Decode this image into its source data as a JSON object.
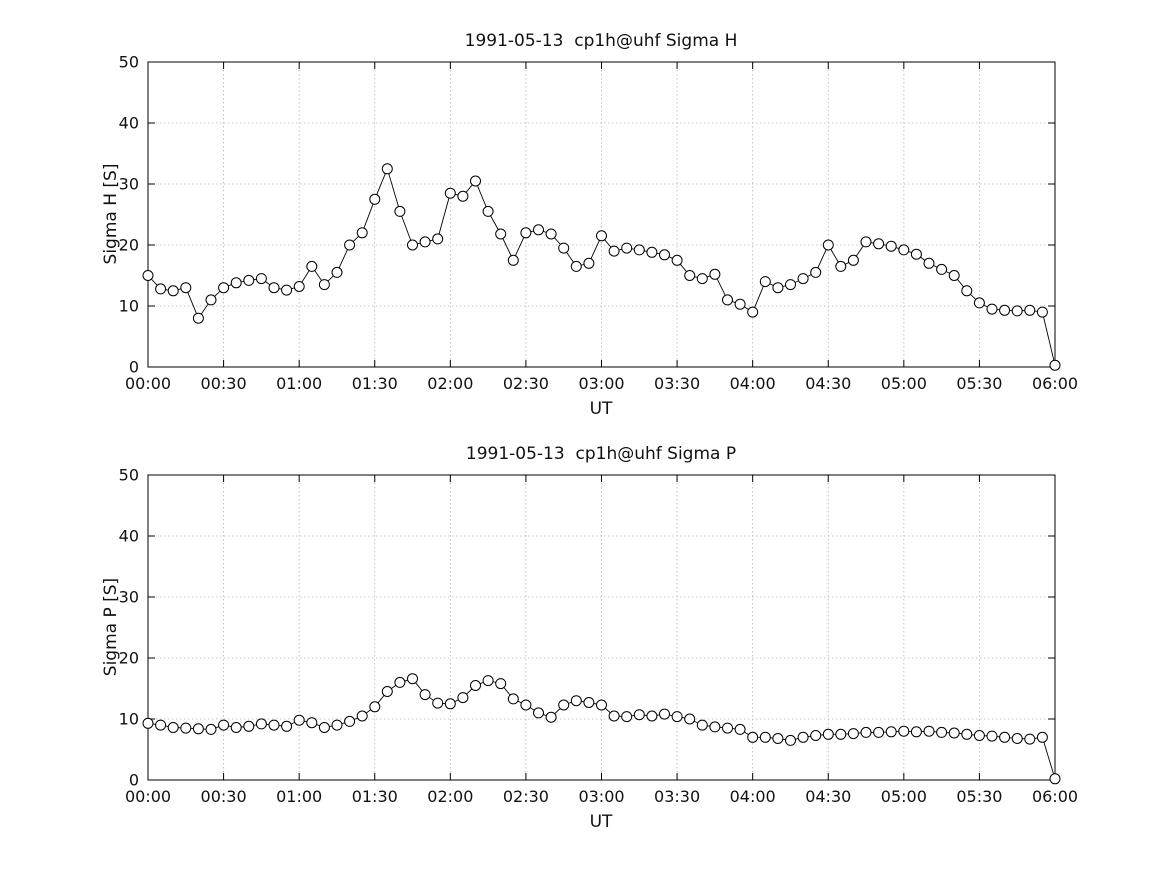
{
  "figure": {
    "background": "#ffffff",
    "line_color": "#000000",
    "marker_style": "open-circle",
    "grid": "dotted-gray"
  },
  "chart_data": [
    {
      "type": "line",
      "title": "1991-05-13  cp1h@uhf Sigma H",
      "xlabel": "UT",
      "ylabel": "Sigma H [S]",
      "ylim": [
        0,
        50
      ],
      "yticks": [
        0,
        10,
        20,
        30,
        40,
        50
      ],
      "xlim_minutes": [
        0,
        360
      ],
      "xtick_minutes": [
        0,
        30,
        60,
        90,
        120,
        150,
        180,
        210,
        240,
        270,
        300,
        330,
        360
      ],
      "xtick_labels": [
        "00:00",
        "00:30",
        "01:00",
        "01:30",
        "02:00",
        "02:30",
        "03:00",
        "03:30",
        "04:00",
        "04:30",
        "05:00",
        "05:30",
        "06:00"
      ],
      "legend": "none",
      "x_minutes": [
        0,
        5,
        10,
        15,
        20,
        25,
        30,
        35,
        40,
        45,
        50,
        55,
        60,
        65,
        70,
        75,
        80,
        85,
        90,
        95,
        100,
        105,
        110,
        115,
        120,
        125,
        130,
        135,
        140,
        145,
        150,
        155,
        160,
        165,
        170,
        175,
        180,
        185,
        190,
        195,
        200,
        205,
        210,
        215,
        220,
        225,
        230,
        235,
        240,
        245,
        250,
        255,
        260,
        265,
        270,
        275,
        280,
        285,
        290,
        295,
        300,
        305,
        310,
        315,
        320,
        325,
        330,
        335,
        340,
        345,
        350,
        355,
        360
      ],
      "values": [
        15.0,
        12.8,
        12.5,
        13.0,
        8.0,
        11.0,
        13.0,
        13.8,
        14.2,
        14.5,
        13.0,
        12.6,
        13.2,
        16.5,
        13.5,
        15.5,
        20.0,
        22.0,
        27.5,
        32.5,
        25.5,
        20.0,
        20.5,
        21.0,
        28.5,
        28.0,
        30.5,
        25.5,
        21.8,
        17.5,
        22.0,
        22.5,
        21.8,
        19.5,
        16.5,
        17.0,
        21.5,
        19.0,
        19.5,
        19.2,
        18.8,
        18.4,
        17.5,
        15.0,
        14.5,
        15.2,
        11.0,
        10.3,
        9.0,
        14.0,
        13.0,
        13.5,
        14.5,
        15.5,
        20.0,
        16.5,
        17.5,
        20.5,
        20.2,
        19.8,
        19.2,
        18.5,
        17.0,
        16.0,
        15.0,
        12.5,
        10.5,
        9.5,
        9.3,
        9.2,
        9.3,
        9.0,
        0.3
      ]
    },
    {
      "type": "line",
      "title": "1991-05-13  cp1h@uhf Sigma P",
      "xlabel": "UT",
      "ylabel": "Sigma P [S]",
      "ylim": [
        0,
        50
      ],
      "yticks": [
        0,
        10,
        20,
        30,
        40,
        50
      ],
      "xlim_minutes": [
        0,
        360
      ],
      "xtick_minutes": [
        0,
        30,
        60,
        90,
        120,
        150,
        180,
        210,
        240,
        270,
        300,
        330,
        360
      ],
      "xtick_labels": [
        "00:00",
        "00:30",
        "01:00",
        "01:30",
        "02:00",
        "02:30",
        "03:00",
        "03:30",
        "04:00",
        "04:30",
        "05:00",
        "05:30",
        "06:00"
      ],
      "legend": "none",
      "x_minutes": [
        0,
        5,
        10,
        15,
        20,
        25,
        30,
        35,
        40,
        45,
        50,
        55,
        60,
        65,
        70,
        75,
        80,
        85,
        90,
        95,
        100,
        105,
        110,
        115,
        120,
        125,
        130,
        135,
        140,
        145,
        150,
        155,
        160,
        165,
        170,
        175,
        180,
        185,
        190,
        195,
        200,
        205,
        210,
        215,
        220,
        225,
        230,
        235,
        240,
        245,
        250,
        255,
        260,
        265,
        270,
        275,
        280,
        285,
        290,
        295,
        300,
        305,
        310,
        315,
        320,
        325,
        330,
        335,
        340,
        345,
        350,
        355,
        360
      ],
      "values": [
        9.3,
        9.0,
        8.6,
        8.5,
        8.4,
        8.3,
        9.0,
        8.6,
        8.8,
        9.2,
        9.0,
        8.8,
        9.8,
        9.4,
        8.6,
        9.0,
        9.6,
        10.5,
        12.0,
        14.5,
        16.0,
        16.6,
        14.0,
        12.6,
        12.5,
        13.5,
        15.5,
        16.3,
        15.8,
        13.3,
        12.3,
        11.0,
        10.3,
        12.3,
        13.0,
        12.7,
        12.3,
        10.5,
        10.4,
        10.7,
        10.5,
        10.8,
        10.4,
        10.0,
        9.0,
        8.7,
        8.5,
        8.3,
        7.0,
        7.0,
        6.8,
        6.5,
        7.0,
        7.3,
        7.5,
        7.5,
        7.6,
        7.8,
        7.8,
        7.9,
        8.0,
        7.9,
        8.0,
        7.8,
        7.7,
        7.5,
        7.3,
        7.2,
        7.0,
        6.8,
        6.7,
        7.0,
        0.2
      ]
    }
  ]
}
